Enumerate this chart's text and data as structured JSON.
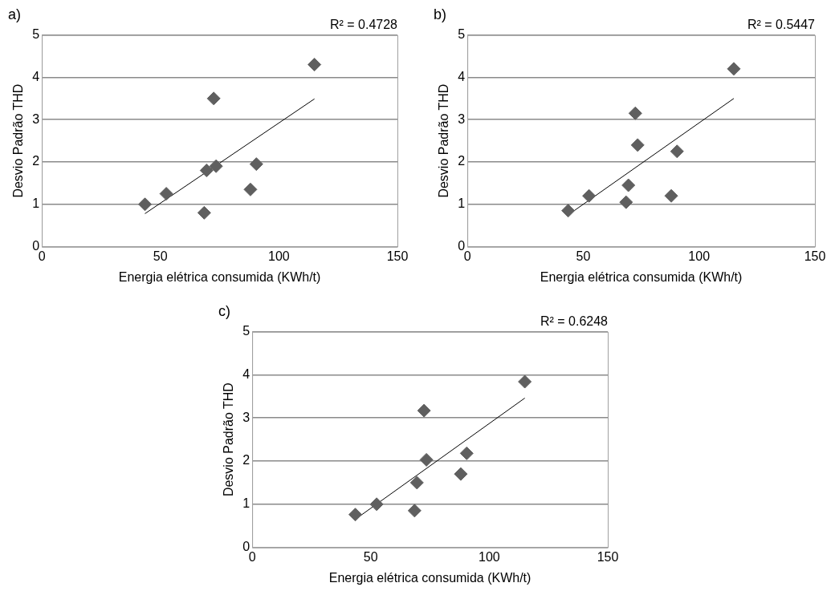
{
  "chart_data": [
    {
      "type": "scatter",
      "title": "a)",
      "xlabel": "Energia elétrica consumida (KWh/t)",
      "ylabel": "Desvio Padrão THD",
      "annotations": [
        "R² = 0.4728"
      ],
      "xlim": [
        0,
        150
      ],
      "xticks": [
        0,
        50,
        100,
        150
      ],
      "ylim": [
        0,
        5
      ],
      "yticks": [
        0,
        1,
        2,
        3,
        4,
        5
      ],
      "grid": "y",
      "legend": false,
      "marker": "diamond",
      "series": [
        {
          "color": "#5f5f5f",
          "x": [
            43.5,
            52.5,
            68.5,
            69.5,
            72.5,
            73.5,
            88,
            90.5,
            115
          ],
          "values": [
            1.0,
            1.25,
            0.8,
            1.8,
            3.5,
            1.9,
            1.35,
            1.95,
            4.3
          ]
        },
        {
          "type": "line",
          "color": "#000000",
          "marker": "none",
          "line_style": "solid",
          "x": [
            43.5,
            115
          ],
          "values": [
            0.78,
            3.49
          ]
        }
      ]
    },
    {
      "type": "scatter",
      "title": "b)",
      "xlabel": "Energia elétrica consumida (KWh/t)",
      "ylabel": "Desvio Padrão THD",
      "annotations": [
        "R² = 0.5447"
      ],
      "xlim": [
        0,
        150
      ],
      "xticks": [
        0,
        50,
        100,
        150
      ],
      "ylim": [
        0,
        5
      ],
      "yticks": [
        0,
        1,
        2,
        3,
        4,
        5
      ],
      "grid": "y",
      "legend": false,
      "marker": "diamond",
      "series": [
        {
          "color": "#5f5f5f",
          "x": [
            43.5,
            52.5,
            68.5,
            69.5,
            72.5,
            73.5,
            88,
            90.5,
            115
          ],
          "values": [
            0.85,
            1.2,
            1.05,
            1.45,
            3.15,
            2.4,
            1.2,
            2.25,
            4.2
          ]
        },
        {
          "type": "line",
          "color": "#000000",
          "marker": "none",
          "line_style": "solid",
          "x": [
            43.5,
            115
          ],
          "values": [
            0.75,
            3.5
          ]
        }
      ]
    },
    {
      "type": "scatter",
      "title": "c)",
      "xlabel": "Energia elétrica consumida (KWh/t)",
      "ylabel": "Desvio Padrão THD",
      "annotations": [
        "R² = 0.6248"
      ],
      "xlim": [
        0,
        150
      ],
      "xticks": [
        0,
        50,
        100,
        150
      ],
      "ylim": [
        0,
        5
      ],
      "yticks": [
        0,
        1,
        2,
        3,
        4,
        5
      ],
      "grid": "y",
      "legend": false,
      "marker": "diamond",
      "series": [
        {
          "color": "#5f5f5f",
          "x": [
            43.5,
            52.5,
            68.5,
            69.5,
            72.5,
            73.5,
            88,
            90.5,
            115
          ],
          "values": [
            0.76,
            1.0,
            0.85,
            1.5,
            3.17,
            2.03,
            1.7,
            2.18,
            3.84
          ]
        },
        {
          "type": "line",
          "color": "#000000",
          "marker": "none",
          "line_style": "solid",
          "x": [
            43.5,
            115
          ],
          "values": [
            0.65,
            3.46
          ]
        }
      ]
    }
  ]
}
